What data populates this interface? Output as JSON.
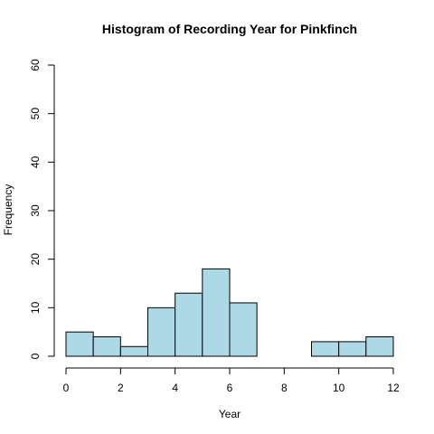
{
  "chart_data": {
    "type": "bar",
    "title": "Histogram of Recording Year for Pinkfinch",
    "xlabel": "Year",
    "ylabel": "Frequency",
    "bin_edges": [
      0,
      1,
      2,
      3,
      4,
      5,
      6,
      7,
      8,
      9,
      10,
      11,
      12
    ],
    "values": [
      5,
      4,
      2,
      10,
      13,
      18,
      11,
      0,
      0,
      3,
      3,
      4
    ],
    "xlim": [
      0,
      12
    ],
    "ylim": [
      0,
      60
    ],
    "x_ticks": [
      0,
      2,
      4,
      6,
      8,
      10,
      12
    ],
    "y_ticks": [
      0,
      10,
      20,
      30,
      40,
      50,
      60
    ],
    "bar_color": "#add8e6",
    "grid": false,
    "legend": "none"
  }
}
